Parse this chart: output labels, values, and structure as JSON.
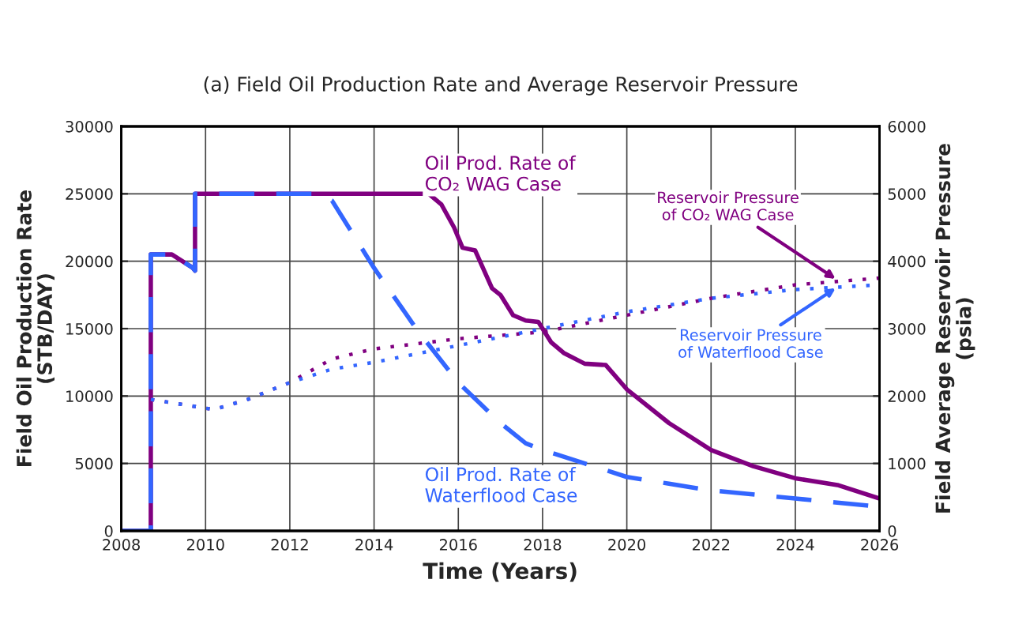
{
  "chart_data": {
    "type": "line",
    "title": "(a) Field Oil Production Rate and Average Reservoir Pressure",
    "xlabel": "Time (Years)",
    "ylabel": "Field Oil Production Rate\n(STB/DAY)",
    "y2label": "Field Average Reservoir Pressure\n(psia)",
    "xlim": [
      2008,
      2026
    ],
    "xticks": [
      2008,
      2010,
      2012,
      2014,
      2016,
      2018,
      2020,
      2022,
      2024,
      2026
    ],
    "ylim": [
      0,
      30000
    ],
    "yticks": [
      0,
      5000,
      10000,
      15000,
      20000,
      25000,
      30000
    ],
    "y2lim": [
      0,
      6000
    ],
    "y2ticks": [
      0,
      1000,
      2000,
      3000,
      4000,
      5000,
      6000
    ],
    "grid": true,
    "legend": false,
    "series": [
      {
        "color": "#800080",
        "line_style": "solid",
        "x": [
          2008,
          2008.7,
          2008.7,
          2009.2,
          2009.7,
          2009.75,
          2009.75,
          2015.3,
          2015.6,
          2015.9,
          2016.1,
          2016.4,
          2016.8,
          2017.0,
          2017.3,
          2017.6,
          2017.9,
          2018.2,
          2018.5,
          2019.0,
          2019.5,
          2020.0,
          2021.0,
          2022.0,
          2023.0,
          2024.0,
          2025.0,
          2026.0
        ],
        "values": [
          0,
          0,
          20500,
          20500,
          19500,
          19300,
          25000,
          25000,
          24200,
          22500,
          21000,
          20800,
          18000,
          17500,
          16000,
          15600,
          15500,
          14000,
          13200,
          12400,
          12300,
          10500,
          8000,
          6000,
          4800,
          3900,
          3400,
          2400
        ]
      },
      {
        "color": "#3366ff",
        "line_style": "dashed",
        "x": [
          2008,
          2008.7,
          2008.7,
          2009.2,
          2009.7,
          2009.75,
          2009.75,
          2012.7,
          2013.0,
          2014.0,
          2015.0,
          2016.0,
          2017.0,
          2017.6,
          2018.0,
          2019.0,
          2020.0,
          2021.0,
          2022.0,
          2024.0,
          2026.0
        ],
        "values": [
          0,
          0,
          20500,
          20500,
          19500,
          19300,
          25000,
          25000,
          24500,
          19500,
          15000,
          11000,
          8000,
          6500,
          6000,
          5000,
          4000,
          3500,
          3000,
          2400,
          1800
        ]
      },
      {
        "color": "#800080",
        "line_style": "dotted",
        "axis": "y2",
        "x": [
          2008.7,
          2009.5,
          2010.2,
          2011.0,
          2012.0,
          2013.0,
          2014.0,
          2016.0,
          2018.0,
          2020.0,
          2022.0,
          2024.0,
          2026.0
        ],
        "values": [
          1950,
          1870,
          1800,
          1950,
          2200,
          2550,
          2700,
          2850,
          2950,
          3200,
          3450,
          3650,
          3750
        ]
      },
      {
        "color": "#3366ff",
        "line_style": "dotted",
        "axis": "y2",
        "x": [
          2008.7,
          2009.5,
          2010.2,
          2011.0,
          2012.0,
          2013.0,
          2014.0,
          2016.0,
          2018.0,
          2020.0,
          2022.0,
          2024.0,
          2026.0
        ],
        "values": [
          1950,
          1870,
          1800,
          1950,
          2200,
          2400,
          2500,
          2750,
          3000,
          3250,
          3450,
          3580,
          3650
        ]
      }
    ],
    "annotations": [
      "Oil Prod. Rate of\nCO₂ WAG Case",
      "Oil Prod. Rate of\nWaterflood Case",
      {
        "text": "Reservoir Pressure\nof CO₂ WAG Case",
        "x": 2025.0,
        "y": 18600
      },
      {
        "text": "Reservoir Pressure\nof Waterflood Case",
        "x": 2025.0,
        "y": 18100
      }
    ]
  }
}
